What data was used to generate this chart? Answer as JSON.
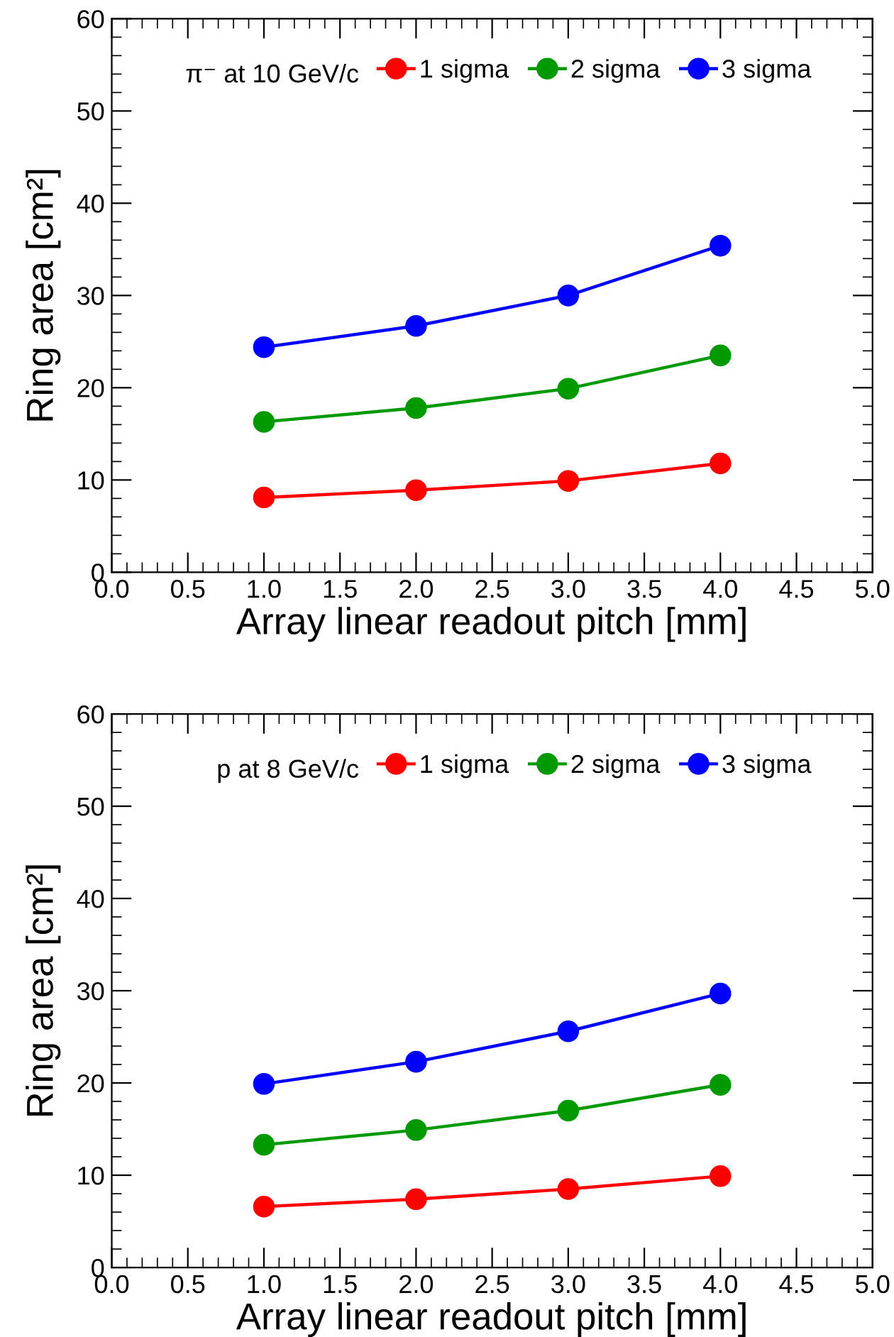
{
  "chart_data": [
    {
      "type": "line",
      "legend_title": "π⁻ at 10 GeV/c",
      "xlabel": "Array linear readout pitch [mm]",
      "ylabel": "Ring area [cm²]",
      "x": [
        1.0,
        2.0,
        3.0,
        4.0
      ],
      "series": [
        {
          "name": "1 sigma",
          "color": "#ff0000",
          "values": [
            8.1,
            8.9,
            9.9,
            11.8
          ]
        },
        {
          "name": "2 sigma",
          "color": "#009900",
          "values": [
            16.3,
            17.8,
            19.9,
            23.5
          ]
        },
        {
          "name": "3 sigma",
          "color": "#0000ff",
          "values": [
            24.4,
            26.7,
            30.0,
            35.4
          ]
        }
      ],
      "xlim": [
        0,
        5
      ],
      "xticks": [
        {
          "value": 0,
          "label": "0.0"
        },
        0.5,
        {
          "value": 1,
          "label": "1.0"
        },
        1.5,
        {
          "value": 2,
          "label": "2.0"
        },
        2.5,
        {
          "value": 3,
          "label": "3.0"
        },
        3.5,
        {
          "value": 4,
          "label": "4.0"
        },
        4.5,
        {
          "value": 5,
          "label": "5.0"
        }
      ],
      "ylim": [
        0,
        60
      ],
      "yticks": [
        0,
        10,
        20,
        30,
        40,
        50,
        60
      ],
      "grid": false,
      "legend": "top",
      "marker": "circle",
      "line_style": "solid"
    },
    {
      "type": "line",
      "legend_title": "p at 8 GeV/c",
      "xlabel": "Array linear readout pitch [mm]",
      "ylabel": "Ring area [cm²]",
      "x": [
        1.0,
        2.0,
        3.0,
        4.0
      ],
      "series": [
        {
          "name": "1 sigma",
          "color": "#ff0000",
          "values": [
            6.6,
            7.4,
            8.5,
            9.9
          ]
        },
        {
          "name": "2 sigma",
          "color": "#009900",
          "values": [
            13.3,
            14.9,
            17.0,
            19.8
          ]
        },
        {
          "name": "3 sigma",
          "color": "#0000ff",
          "values": [
            19.9,
            22.3,
            25.6,
            29.7
          ]
        }
      ],
      "xlim": [
        0,
        5
      ],
      "xticks": [
        {
          "value": 0,
          "label": "0.0"
        },
        0.5,
        {
          "value": 1,
          "label": "1.0"
        },
        1.5,
        {
          "value": 2,
          "label": "2.0"
        },
        2.5,
        {
          "value": 3,
          "label": "3.0"
        },
        3.5,
        {
          "value": 4,
          "label": "4.0"
        },
        4.5,
        {
          "value": 5,
          "label": "5.0"
        }
      ],
      "ylim": [
        0,
        60
      ],
      "yticks": [
        0,
        10,
        20,
        30,
        40,
        50,
        60
      ],
      "grid": false,
      "legend": "top",
      "marker": "circle",
      "line_style": "solid"
    }
  ]
}
